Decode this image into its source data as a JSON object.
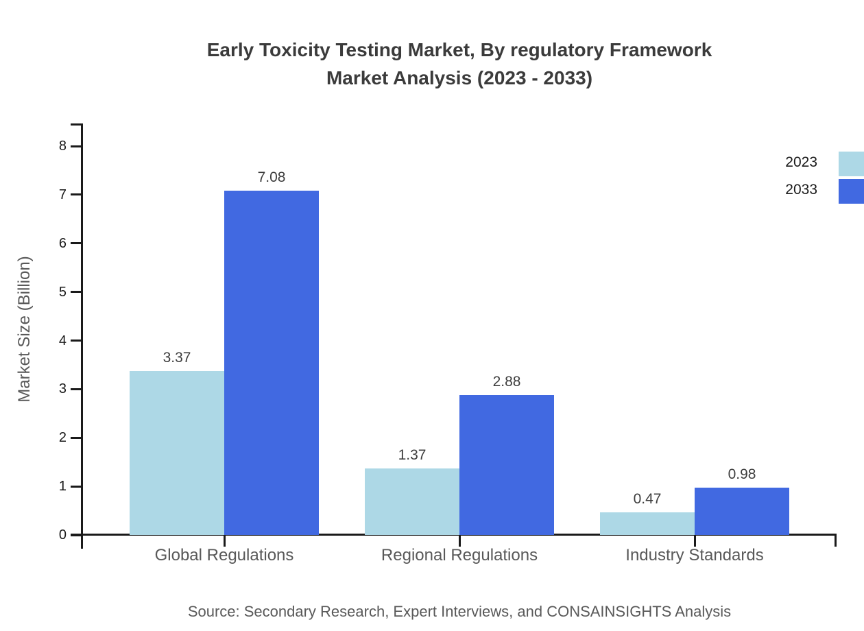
{
  "title": {
    "line1": "Early Toxicity Testing Market, By regulatory Framework",
    "line2": "Market Analysis (2023 - 2033)"
  },
  "chart_data": {
    "type": "bar",
    "categories": [
      "Global Regulations",
      "Regional Regulations",
      "Industry Standards"
    ],
    "series": [
      {
        "name": "2023",
        "color": "#add8e6",
        "values": [
          3.37,
          1.37,
          0.47
        ]
      },
      {
        "name": "2033",
        "color": "#4169e1",
        "values": [
          7.08,
          2.88,
          0.98
        ]
      }
    ],
    "title": "Early Toxicity Testing Market, By regulatory Framework Market Analysis (2023 - 2033)",
    "xlabel": "",
    "ylabel": "Market Size (Billion)",
    "ylim": [
      0,
      8
    ],
    "yticks": [
      0,
      1,
      2,
      3,
      4,
      5,
      6,
      7,
      8
    ],
    "grid": false,
    "legend_position": "top-right",
    "value_labels": [
      "3.37",
      "7.08",
      "1.37",
      "2.88",
      "0.47",
      "0.98"
    ]
  },
  "colors": {
    "axis": "#1a1a1a",
    "title_text": "#3b3b3b",
    "muted_text": "#595959",
    "bar_2023": "#add8e6",
    "bar_2033": "#4169e1"
  },
  "source": "Source: Secondary Research, Expert Interviews, and CONSAINSIGHTS Analysis"
}
